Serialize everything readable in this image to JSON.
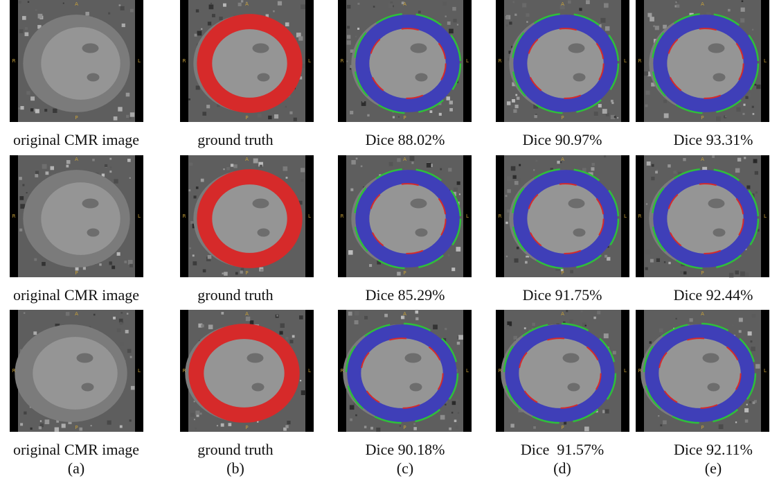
{
  "rows": [
    [
      "original CMR image",
      "ground truth",
      "Dice 88.02%",
      "Dice 90.97%",
      "Dice 93.31%"
    ],
    [
      "original CMR image",
      "ground truth",
      "Dice 85.29%",
      "Dice 91.75%",
      "Dice 92.44%"
    ],
    [
      "original CMR image",
      "ground truth",
      "Dice 90.18%",
      "Dice  91.57%",
      "Dice 92.11%"
    ]
  ],
  "column_labels": [
    "(a)",
    "(b)",
    "(c)",
    "(d)",
    "(e)"
  ],
  "orientation_labels": {
    "anterior": "A",
    "right": "R",
    "left": "L",
    "posterior": "P"
  }
}
